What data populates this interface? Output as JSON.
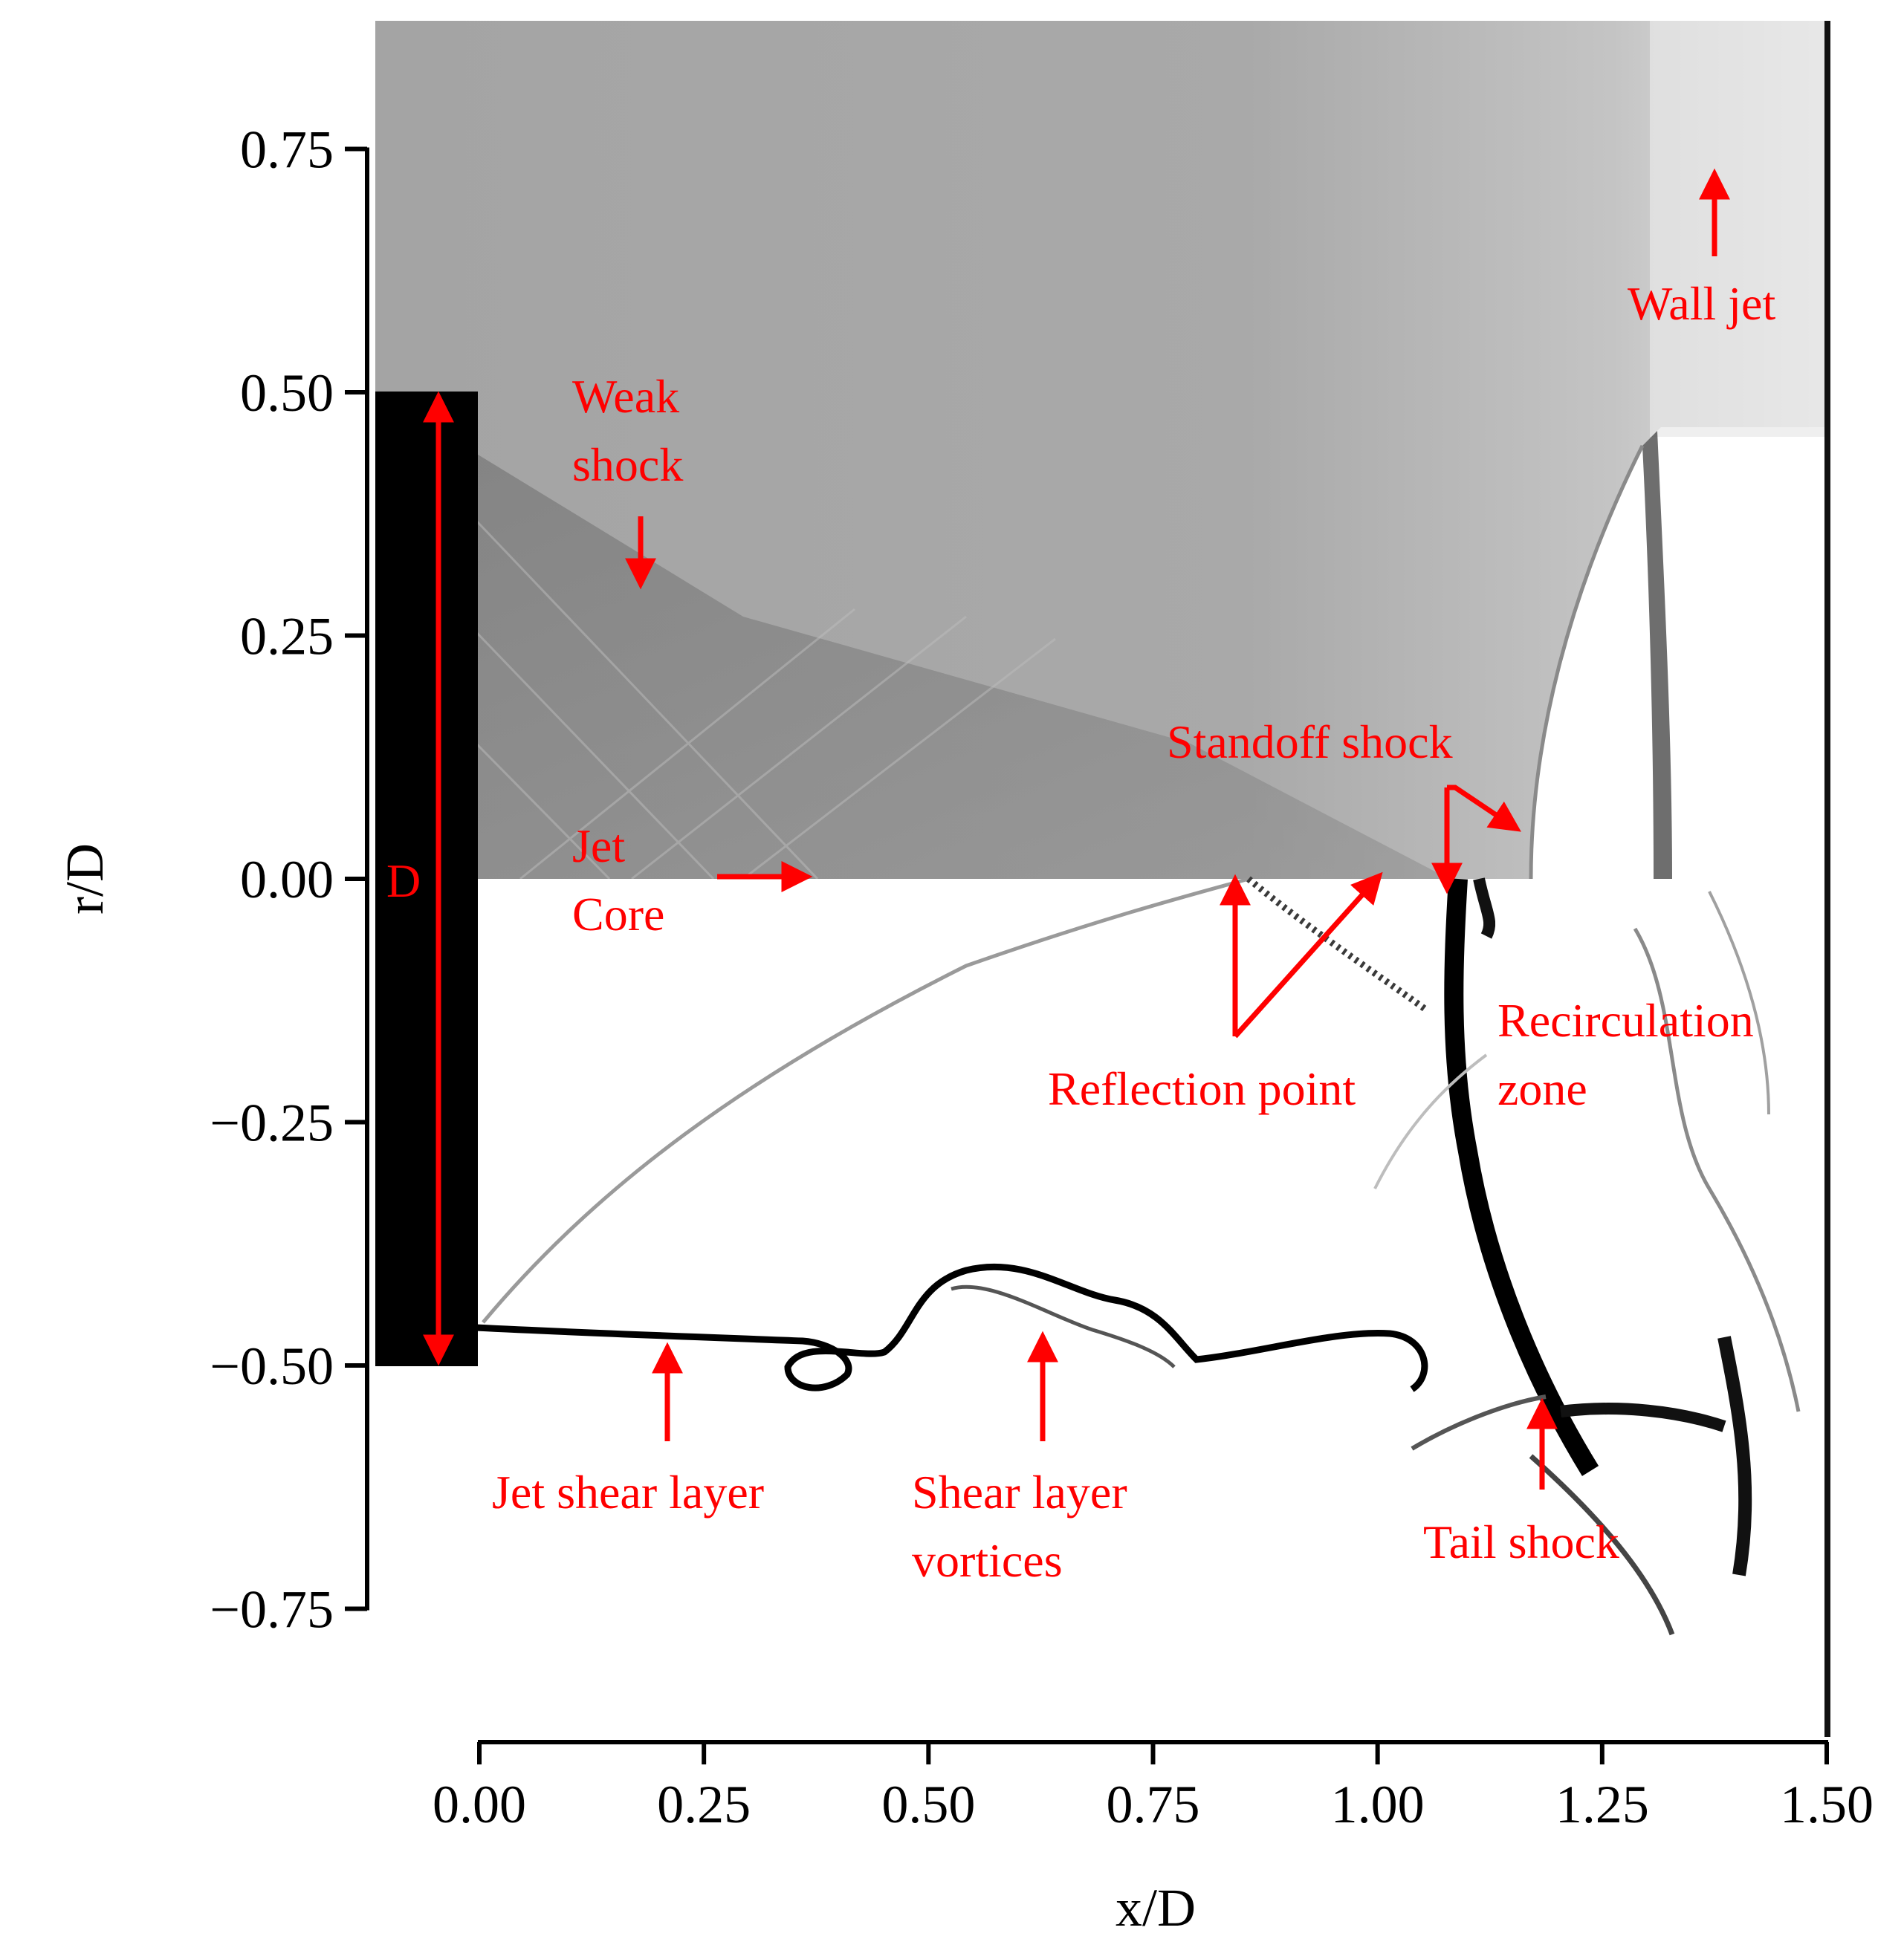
{
  "chart_data": {
    "type": "image",
    "title": "",
    "xlabel": "x/D",
    "ylabel": "r/D",
    "xlim": [
      -0.12,
      1.5
    ],
    "ylim": [
      -0.88,
      0.88
    ],
    "x_ticks": [
      "0.00",
      "0.25",
      "0.50",
      "0.75",
      "1.00",
      "1.25",
      "1.50"
    ],
    "x_tick_values": [
      0.0,
      0.25,
      0.5,
      0.75,
      1.0,
      1.25,
      1.5
    ],
    "y_ticks": [
      "0.75",
      "0.50",
      "0.25",
      "0.00",
      "−0.25",
      "−0.50",
      "−0.75"
    ],
    "y_tick_values": [
      0.75,
      0.5,
      0.25,
      0.0,
      -0.25,
      -0.5,
      -0.75
    ],
    "colors": {
      "annotation": "#ff0000",
      "nozzle": "#000000",
      "upper_field": "#a8a8a8",
      "lower_field": "#ffffff"
    },
    "annotations": [
      {
        "id": "weak-shock",
        "lines": [
          "Weak",
          "shock"
        ]
      },
      {
        "id": "wall-jet",
        "lines": [
          "Wall jet"
        ]
      },
      {
        "id": "diameter",
        "lines": [
          "D"
        ]
      },
      {
        "id": "jet-core",
        "lines": [
          "Jet",
          "Core"
        ]
      },
      {
        "id": "standoff-shock",
        "lines": [
          "Standoff shock"
        ]
      },
      {
        "id": "reflection-point",
        "lines": [
          "Reflection point"
        ]
      },
      {
        "id": "recirculation-zone",
        "lines": [
          "Recirculation",
          "zone"
        ]
      },
      {
        "id": "jet-shear-layer",
        "lines": [
          "Jet shear layer"
        ]
      },
      {
        "id": "shear-layer-vortices",
        "lines": [
          "Shear layer",
          "vortices"
        ]
      },
      {
        "id": "tail-shock",
        "lines": [
          "Tail shock"
        ]
      }
    ]
  }
}
